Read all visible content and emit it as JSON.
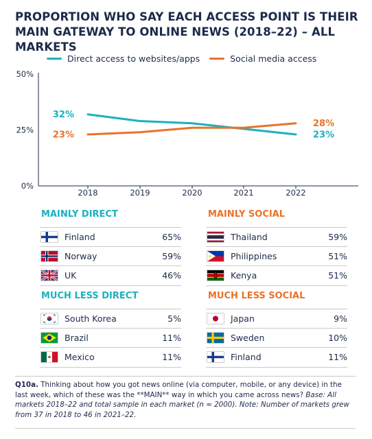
{
  "title": "PROPORTION WHO SAY EACH ACCESS POINT IS THEIR MAIN GATEWAY TO ONLINE NEWS (2018–22) – ALL MARKETS",
  "colors": {
    "direct": "#1ab0bf",
    "social": "#e8722a",
    "navy": "#1c2a4a",
    "grid": "#c9c9c9"
  },
  "chart_data": {
    "type": "line",
    "x": [
      "2018",
      "2019",
      "2020",
      "2021",
      "2022"
    ],
    "series": [
      {
        "name": "Direct access to websites/apps",
        "values": [
          32,
          29,
          28,
          25.5,
          23
        ],
        "color": "#1ab0bf",
        "start_label": "32%",
        "end_label": "23%"
      },
      {
        "name": "Social media access",
        "values": [
          23,
          24,
          26,
          26,
          28
        ],
        "color": "#e8722a",
        "start_label": "23%",
        "end_label": "28%"
      }
    ],
    "yticks": [
      "0%",
      "25%",
      "50%"
    ],
    "ylim": [
      0,
      50
    ],
    "legend_position": "top"
  },
  "groups": {
    "mainly_direct": {
      "heading": "MAINLY DIRECT",
      "rows": [
        {
          "country": "Finland",
          "value": "65%",
          "flag": "finland-flag"
        },
        {
          "country": "Norway",
          "value": "59%",
          "flag": "norway-flag"
        },
        {
          "country": "UK",
          "value": "46%",
          "flag": "uk-flag"
        }
      ]
    },
    "mainly_social": {
      "heading": "MAINLY SOCIAL",
      "rows": [
        {
          "country": "Thailand",
          "value": "59%",
          "flag": "thailand-flag"
        },
        {
          "country": "Philippines",
          "value": "51%",
          "flag": "philippines-flag"
        },
        {
          "country": "Kenya",
          "value": "51%",
          "flag": "kenya-flag"
        }
      ]
    },
    "much_less_direct": {
      "heading": "MUCH LESS DIRECT",
      "rows": [
        {
          "country": "South Korea",
          "value": "5%",
          "flag": "south-korea-flag"
        },
        {
          "country": "Brazil",
          "value": "11%",
          "flag": "brazil-flag"
        },
        {
          "country": "Mexico",
          "value": "11%",
          "flag": "mexico-flag"
        }
      ]
    },
    "much_less_social": {
      "heading": "MUCH LESS SOCIAL",
      "rows": [
        {
          "country": "Japan",
          "value": "9%",
          "flag": "japan-flag"
        },
        {
          "country": "Sweden",
          "value": "10%",
          "flag": "sweden-flag"
        },
        {
          "country": "Finland",
          "value": "11%",
          "flag": "finland-flag"
        }
      ]
    }
  },
  "footnote": {
    "qid": "Q10a.",
    "question": " Thinking about how you got news online (via computer, mobile, or any device) in the last week, which of these was the **MAIN** way in which you came across news?",
    "base": " Base: All markets 2018–22 and total sample in each market (n ≈ 2000). Note: Number of markets grew from 37 in 2018 to 46 in 2021–22."
  }
}
